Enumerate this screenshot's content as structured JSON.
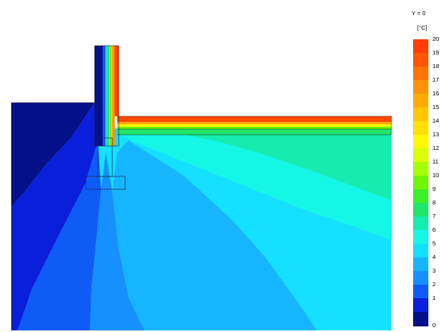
{
  "legend": {
    "header": "Y = 0",
    "unit": "[°C]",
    "zero_label": "0",
    "entries": [
      {
        "label": "20",
        "color": "#ff3d05"
      },
      {
        "label": "19",
        "color": "#ff5505"
      },
      {
        "label": "18",
        "color": "#ff7405"
      },
      {
        "label": "17",
        "color": "#ff9205"
      },
      {
        "label": "16",
        "color": "#ffac05"
      },
      {
        "label": "15",
        "color": "#ffc705"
      },
      {
        "label": "14",
        "color": "#ffe005"
      },
      {
        "label": "13",
        "color": "#fff905"
      },
      {
        "label": "12",
        "color": "#dcff05"
      },
      {
        "label": "11",
        "color": "#a5ff05"
      },
      {
        "label": "10",
        "color": "#6ef705"
      },
      {
        "label": "9",
        "color": "#3df02a"
      },
      {
        "label": "8",
        "color": "#20e66b"
      },
      {
        "label": "7",
        "color": "#16ecb0"
      },
      {
        "label": "6",
        "color": "#16f6e6"
      },
      {
        "label": "5",
        "color": "#16e0ff"
      },
      {
        "label": "4",
        "color": "#16b6ff"
      },
      {
        "label": "3",
        "color": "#1690ff"
      },
      {
        "label": "2",
        "color": "#0e5cf5"
      },
      {
        "label": "1",
        "color": "#0a1fdb"
      },
      {
        "label": "",
        "color": "#040f8a"
      }
    ]
  }
}
